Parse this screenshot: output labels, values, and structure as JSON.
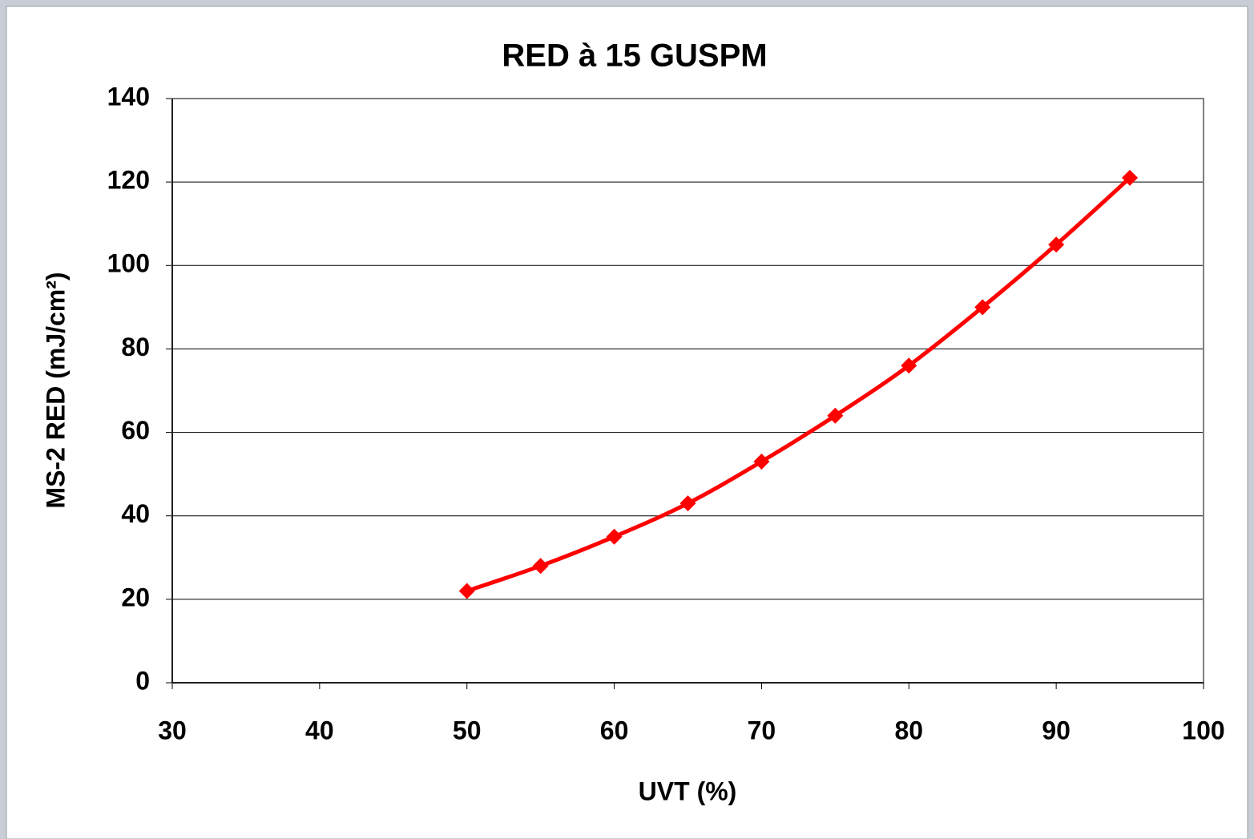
{
  "chart_data": {
    "type": "line",
    "title": "RED à 15 GUSPM",
    "x_label": "UVT (%)",
    "y_label": "MS-2 RED (mJ/cm²)",
    "x": [
      50,
      55,
      60,
      65,
      70,
      75,
      80,
      85,
      90,
      95
    ],
    "series": [
      {
        "name": "RED",
        "color": "#ff0000",
        "values": [
          22,
          28,
          35,
          43,
          53,
          64,
          76,
          90,
          105,
          121
        ]
      }
    ],
    "xlim": [
      30,
      100
    ],
    "xticks": [
      30,
      40,
      50,
      60,
      70,
      80,
      90,
      100
    ],
    "ylim": [
      0,
      140
    ],
    "yticks": [
      0,
      20,
      40,
      60,
      80,
      100,
      120,
      140
    ],
    "grid": true
  }
}
